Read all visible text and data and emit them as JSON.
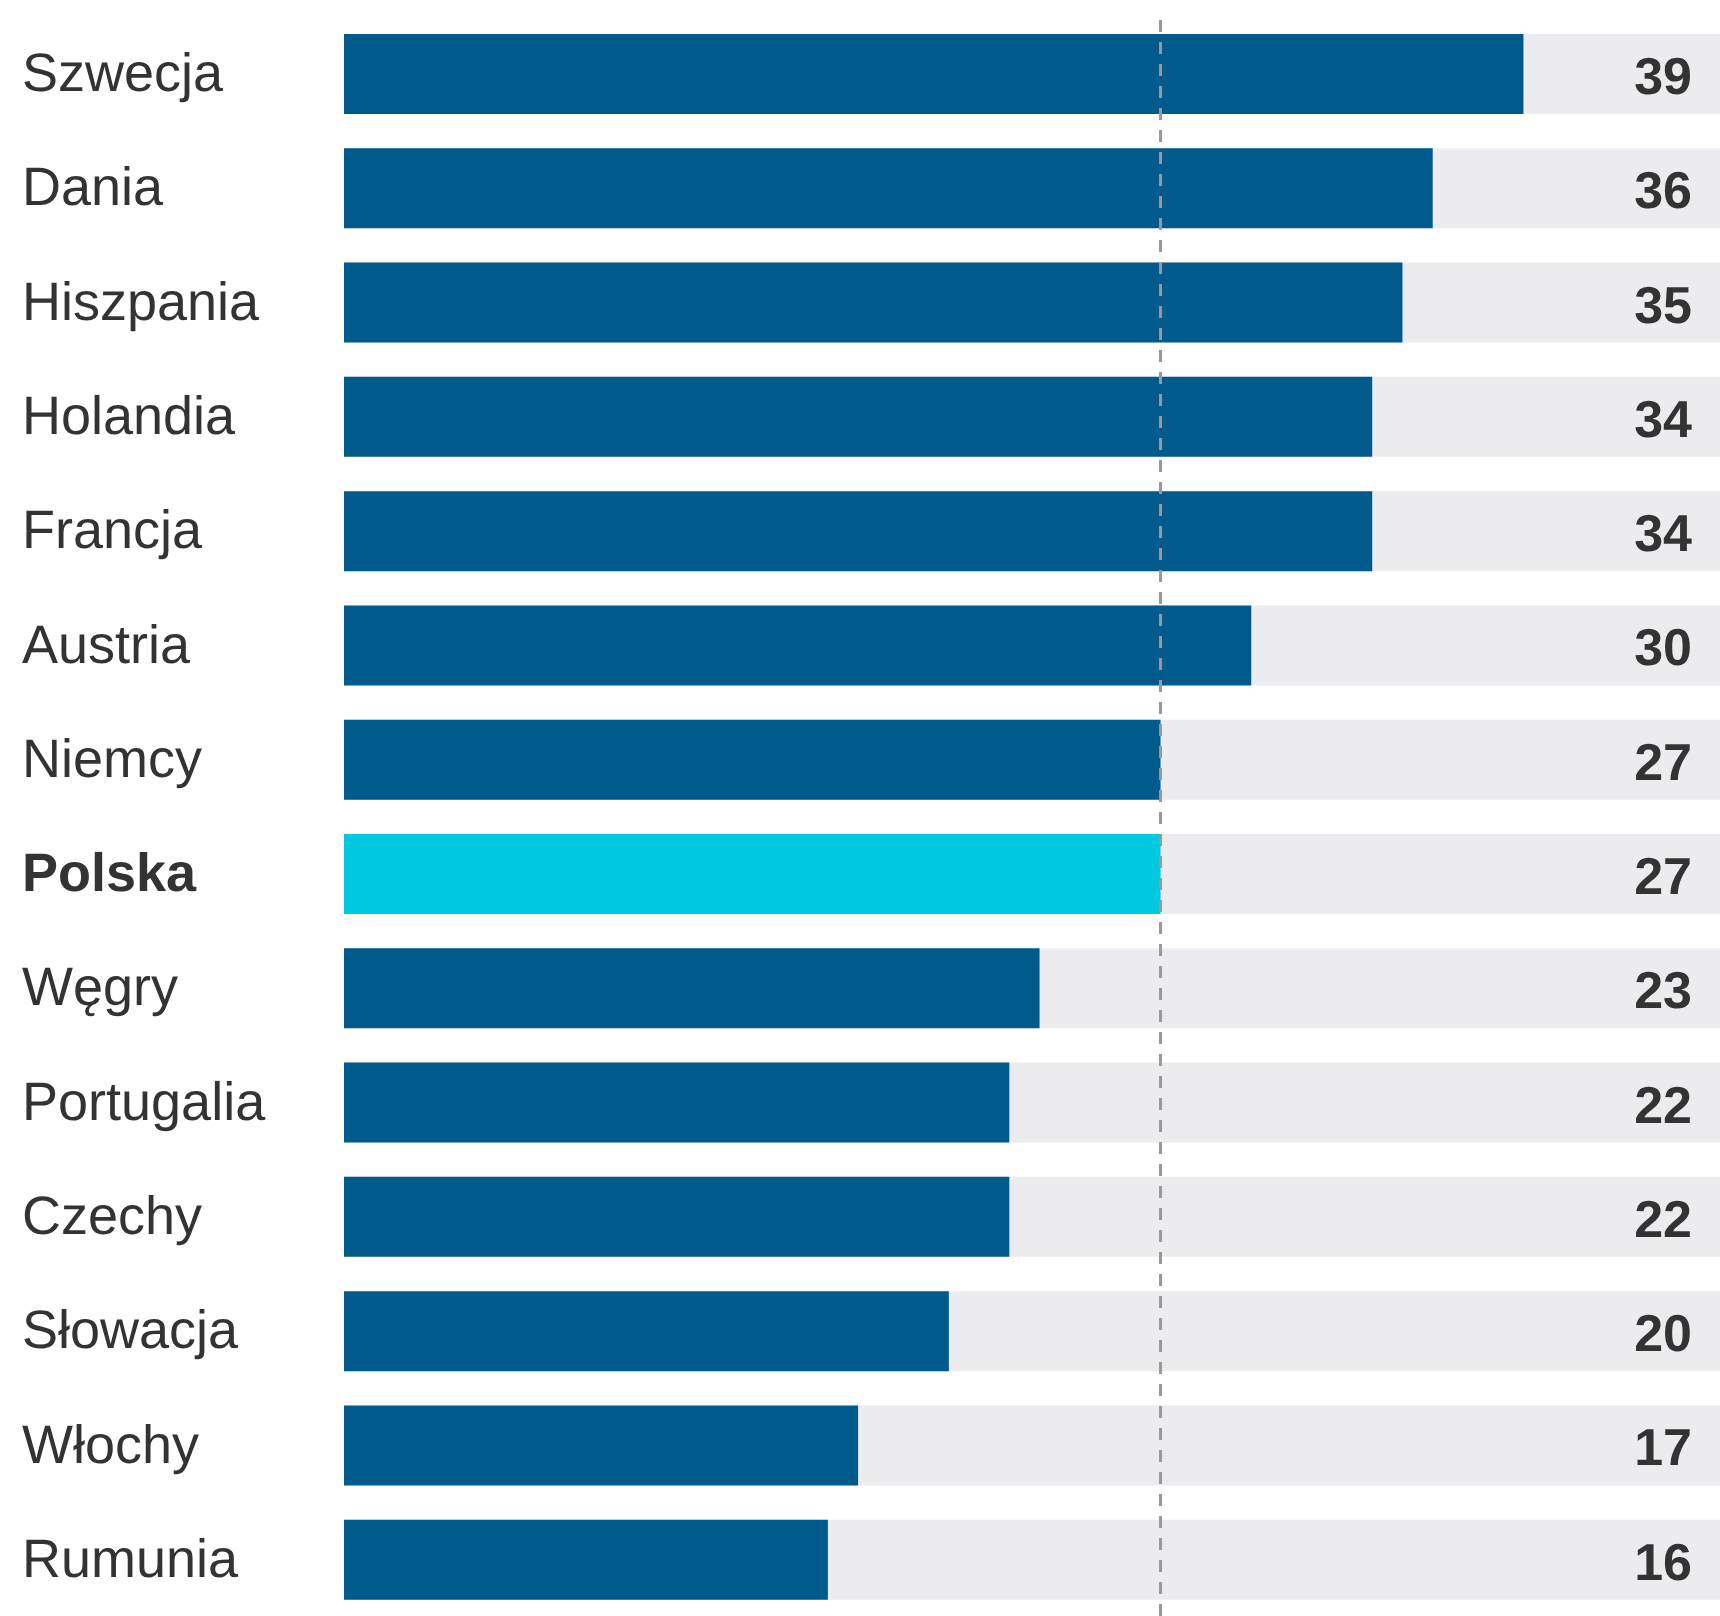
{
  "chart_data": {
    "type": "bar",
    "orientation": "horizontal",
    "categories": [
      "Szwecja",
      "Dania",
      "Hiszpania",
      "Holandia",
      "Francja",
      "Austria",
      "Niemcy",
      "Polska",
      "Węgry",
      "Portugalia",
      "Czechy",
      "Słowacja",
      "Włochy",
      "Rumunia"
    ],
    "values": [
      39,
      36,
      35,
      34,
      34,
      30,
      27,
      27,
      23,
      22,
      22,
      20,
      17,
      16
    ],
    "colors": [
      "#005a8c",
      "#005a8c",
      "#005a8c",
      "#005a8c",
      "#005a8c",
      "#005a8c",
      "#005a8c",
      "#00c8e0",
      "#005a8c",
      "#005a8c",
      "#005a8c",
      "#005a8c",
      "#005a8c",
      "#005a8c"
    ],
    "xlim": [
      0,
      45.5
    ],
    "data_labels": true,
    "ref_lines": [
      {
        "axis": "x",
        "value": 27,
        "color": "#999999",
        "line_style": "dashed"
      }
    ]
  }
}
